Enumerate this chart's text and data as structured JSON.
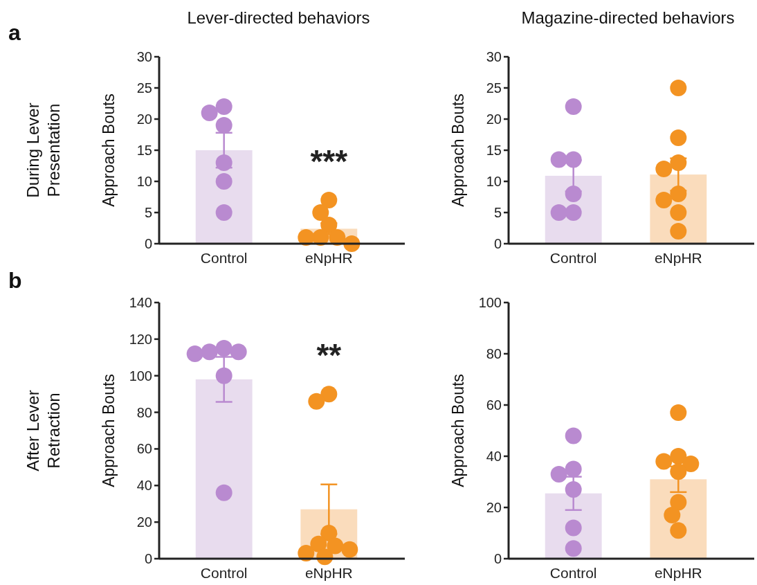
{
  "chart_data": [
    {
      "type": "bar",
      "title": "Lever-directed behaviors",
      "ylabel": "Approach Bouts",
      "categories": [
        "Control",
        "eNpHR"
      ],
      "ylim": [
        0,
        30
      ],
      "yticks": [
        0,
        5,
        10,
        15,
        20,
        25,
        30
      ],
      "annotations": [
        "a",
        "During Lever Presentation",
        "***"
      ],
      "series": [
        {
          "values": [
            15,
            2.4
          ],
          "colors": [
            "#e8dcee",
            "#fadcbc"
          ],
          "errors": [
            2.8,
            0.9
          ]
        },
        {
          "type": "scatter",
          "x": [
            "Control",
            "Control",
            "Control",
            "Control",
            "Control",
            "Control"
          ],
          "values": [
            22,
            21,
            19,
            13,
            10,
            5
          ],
          "color": "#b98ad0"
        },
        {
          "type": "scatter",
          "x": [
            "eNpHR",
            "eNpHR",
            "eNpHR",
            "eNpHR",
            "eNpHR",
            "eNpHR",
            "eNpHR"
          ],
          "values": [
            7,
            5,
            3,
            1,
            1,
            1,
            0
          ],
          "color": "#f39322"
        }
      ]
    },
    {
      "type": "bar",
      "title": "Magazine-directed behaviors",
      "ylabel": "Approach Bouts",
      "categories": [
        "Control",
        "eNpHR"
      ],
      "ylim": [
        0,
        30
      ],
      "yticks": [
        0,
        5,
        10,
        15,
        20,
        25,
        30
      ],
      "series": [
        {
          "values": [
            10.9,
            11.1
          ],
          "colors": [
            "#e8dcee",
            "#fadcbc"
          ],
          "errors": [
            2.5,
            2.6
          ]
        },
        {
          "type": "scatter",
          "x": [
            "Control",
            "Control",
            "Control",
            "Control",
            "Control",
            "Control"
          ],
          "values": [
            22,
            13.5,
            13.5,
            8,
            5,
            5
          ],
          "color": "#b98ad0"
        },
        {
          "type": "scatter",
          "x": [
            "eNpHR",
            "eNpHR",
            "eNpHR",
            "eNpHR",
            "eNpHR",
            "eNpHR",
            "eNpHR",
            "eNpHR"
          ],
          "values": [
            25,
            17,
            13,
            12,
            8,
            7,
            5,
            2
          ],
          "color": "#f39322"
        }
      ]
    },
    {
      "type": "bar",
      "ylabel": "Approach Bouts",
      "categories": [
        "Control",
        "eNpHR"
      ],
      "ylim": [
        0,
        140
      ],
      "yticks": [
        0,
        20,
        40,
        60,
        80,
        100,
        120,
        140
      ],
      "annotations": [
        "b",
        "After Lever Retraction",
        "**"
      ],
      "series": [
        {
          "values": [
            98,
            27
          ],
          "colors": [
            "#e8dcee",
            "#fadcbc"
          ],
          "errors": [
            12.3,
            13.6
          ]
        },
        {
          "type": "scatter",
          "x": [
            "Control",
            "Control",
            "Control",
            "Control",
            "Control",
            "Control"
          ],
          "values": [
            115,
            113,
            113,
            112,
            100,
            36
          ],
          "color": "#b98ad0"
        },
        {
          "type": "scatter",
          "x": [
            "eNpHR",
            "eNpHR",
            "eNpHR",
            "eNpHR",
            "eNpHR",
            "eNpHR",
            "eNpHR",
            "eNpHR"
          ],
          "values": [
            90,
            86,
            14,
            8,
            7,
            5,
            3,
            1
          ],
          "color": "#f39322"
        }
      ]
    },
    {
      "type": "bar",
      "ylabel": "Approach Bouts",
      "categories": [
        "Control",
        "eNpHR"
      ],
      "ylim": [
        0,
        100
      ],
      "yticks": [
        0,
        20,
        40,
        60,
        80,
        100
      ],
      "series": [
        {
          "values": [
            25.5,
            31
          ],
          "colors": [
            "#e8dcee",
            "#fadcbc"
          ],
          "errors": [
            6.5,
            5
          ]
        },
        {
          "type": "scatter",
          "x": [
            "Control",
            "Control",
            "Control",
            "Control",
            "Control",
            "Control"
          ],
          "values": [
            48,
            35,
            33,
            27,
            12,
            4
          ],
          "color": "#b98ad0"
        },
        {
          "type": "scatter",
          "x": [
            "eNpHR",
            "eNpHR",
            "eNpHR",
            "eNpHR",
            "eNpHR",
            "eNpHR",
            "eNpHR",
            "eNpHR"
          ],
          "values": [
            57,
            40,
            38,
            37,
            34,
            22,
            17,
            11
          ],
          "color": "#f39322"
        }
      ]
    }
  ]
}
